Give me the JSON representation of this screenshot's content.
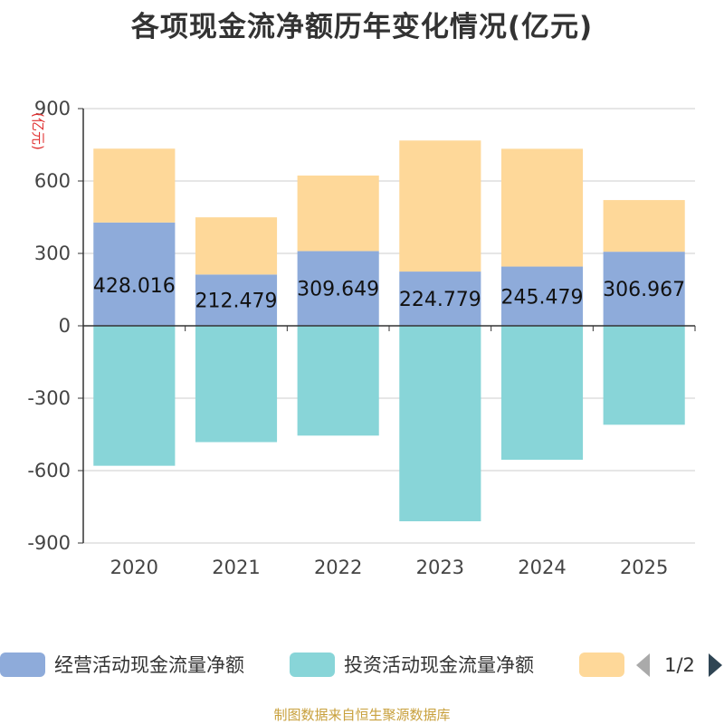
{
  "chart_data": {
    "type": "bar",
    "stacked": true,
    "title": "各项现金流净额历年变化情况(亿元)",
    "ylabel": "(亿元)",
    "xlabel": "",
    "ylim": [
      -900,
      900
    ],
    "yticks": [
      900,
      600,
      300,
      0,
      -300,
      -600,
      -900
    ],
    "categories": [
      "2020",
      "2021",
      "2022",
      "2023",
      "2024",
      "2025"
    ],
    "series": [
      {
        "name": "经营活动现金流量净额",
        "color": "#8eabda",
        "values": [
          428.016,
          212.479,
          309.649,
          224.779,
          245.479,
          306.967
        ],
        "labels": [
          "428.016",
          "212.479",
          "309.649",
          "224.779",
          "245.479",
          "306.967"
        ]
      },
      {
        "name": "投资活动现金流量净额",
        "color": "#88d5d8",
        "values": [
          -580,
          -482,
          -455,
          -810,
          -555,
          -410
        ]
      },
      {
        "name": "",
        "color": "#fed899",
        "values": [
          306,
          237,
          313,
          543,
          488,
          214
        ]
      }
    ],
    "legend_position": "bottom",
    "legend_page": "1/2"
  },
  "source": "制图数据来自恒生聚源数据库",
  "colors": {
    "axis": "#333333",
    "grid": "#cccccc",
    "pager_prev": "#aaaaaa",
    "pager_next": "#2f4554"
  }
}
